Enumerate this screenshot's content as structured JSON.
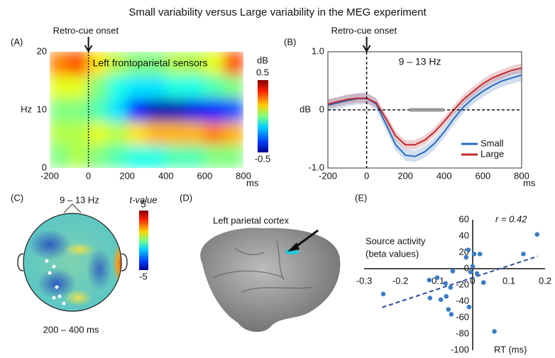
{
  "title": "Small variability versus Large variability in the MEG experiment",
  "chart_data": [
    {
      "type": "heatmap",
      "panel": "(A)",
      "annotation": "Left frontoparietal sensors",
      "vline_label": "Retro-cue onset",
      "vline": 0,
      "ylabel": "Hz",
      "xlabel": "ms",
      "colorbar_label": "dB",
      "x": [
        -200,
        -100,
        0,
        100,
        200,
        300,
        400,
        500,
        600,
        700,
        800
      ],
      "y": [
        0,
        4,
        8,
        12,
        16,
        20
      ],
      "values": [
        [
          0,
          0.05,
          0,
          -0.05,
          -0.1,
          -0.1,
          -0.05,
          -0.05,
          0,
          0
        ],
        [
          0.05,
          0.05,
          0.1,
          0.05,
          0.15,
          0.2,
          0.2,
          0.2,
          0.25,
          0.2
        ],
        [
          0,
          0,
          -0.05,
          -0.15,
          -0.35,
          -0.45,
          -0.45,
          -0.4,
          -0.35,
          -0.3
        ],
        [
          0.1,
          0.1,
          0,
          -0.1,
          -0.15,
          -0.15,
          -0.1,
          -0.1,
          -0.05,
          0
        ],
        [
          0.25,
          0.3,
          0.15,
          0.05,
          0,
          0,
          0.05,
          0.05,
          0.1,
          0.3
        ]
      ],
      "xlim": [
        -200,
        800
      ],
      "xticks": [
        -200,
        0,
        200,
        400,
        600,
        800
      ],
      "ylim": [
        0,
        20
      ],
      "yticks": [
        0,
        10,
        20
      ],
      "clim": [
        -0.5,
        0.5
      ],
      "cticks": [
        0.5,
        -0.5
      ]
    },
    {
      "type": "line",
      "panel": "(B)",
      "annotation": "9 – 13 Hz",
      "vline_label": "Retro-cue onset",
      "vline": 0,
      "ylabel": "dB",
      "xlabel": "ms",
      "sig_bar": [
        220,
        400
      ],
      "x": [
        -200,
        -150,
        -100,
        -50,
        0,
        50,
        100,
        150,
        200,
        250,
        300,
        350,
        400,
        450,
        500,
        550,
        600,
        650,
        700,
        750,
        800
      ],
      "series": [
        {
          "name": "Small",
          "color": "#2b6cc0",
          "error": 0.1,
          "values": [
            0.08,
            0.12,
            0.16,
            0.19,
            0.2,
            0.1,
            -0.25,
            -0.6,
            -0.78,
            -0.8,
            -0.72,
            -0.58,
            -0.38,
            -0.15,
            0.05,
            0.2,
            0.32,
            0.42,
            0.5,
            0.55,
            0.6
          ]
        },
        {
          "name": "Large",
          "color": "#c0282f",
          "error": 0.08,
          "values": [
            0.1,
            0.14,
            0.18,
            0.2,
            0.2,
            0.12,
            -0.15,
            -0.45,
            -0.6,
            -0.6,
            -0.52,
            -0.38,
            -0.2,
            0.0,
            0.18,
            0.32,
            0.45,
            0.55,
            0.62,
            0.68,
            0.72
          ]
        }
      ],
      "xlim": [
        -200,
        800
      ],
      "xticks": [
        -200,
        0,
        200,
        400,
        600,
        800
      ],
      "ylim": [
        -1,
        1
      ],
      "yticks": [
        {
          "value": 1,
          "label": "1.0"
        },
        0,
        {
          "value": -1,
          "label": "-1.0"
        }
      ],
      "legend": "lower-right"
    },
    {
      "type": "topomap",
      "panel": "(C)",
      "title": "9 – 13 Hz",
      "subtitle": "200 – 400 ms",
      "colorbar_label": "t-value",
      "clim": [
        -5,
        5
      ],
      "cticks": [
        5,
        -5
      ]
    },
    {
      "type": "scatter",
      "panel": "(E)",
      "annotation": "r = 0.42",
      "xlabel": [
        "Source activity",
        "(beta values)"
      ],
      "ylabel": "RT (ms)",
      "color": "#3a7cc4",
      "fit": {
        "slope": 146,
        "intercept": -11
      },
      "x": [
        -0.247,
        -0.12,
        -0.118,
        -0.098,
        -0.088,
        -0.075,
        -0.073,
        -0.067,
        -0.059,
        -0.061,
        -0.055,
        -0.018,
        -0.012,
        -0.006,
        0,
        0.004,
        0.02,
        0.03,
        0.012,
        -0.01,
        0.06,
        0.14,
        0.178
      ],
      "y": [
        -31,
        -14,
        -36,
        -11,
        -38,
        -18,
        -34,
        -50,
        -56,
        -23,
        -3,
        14,
        23,
        -4,
        3,
        18,
        18,
        -17,
        -6,
        -47,
        -77,
        18,
        42
      ],
      "xlim": [
        -0.3,
        0.2
      ],
      "xticks": [
        -0.3,
        -0.2,
        -0.1,
        0,
        0.1,
        0.2
      ],
      "ylim": [
        -100,
        60
      ],
      "yticks": [
        -100,
        -80,
        -60,
        -40,
        -20,
        0,
        20,
        40,
        60
      ]
    }
  ],
  "brain": {
    "panel": "(D)",
    "label": "Left parietal cortex"
  }
}
